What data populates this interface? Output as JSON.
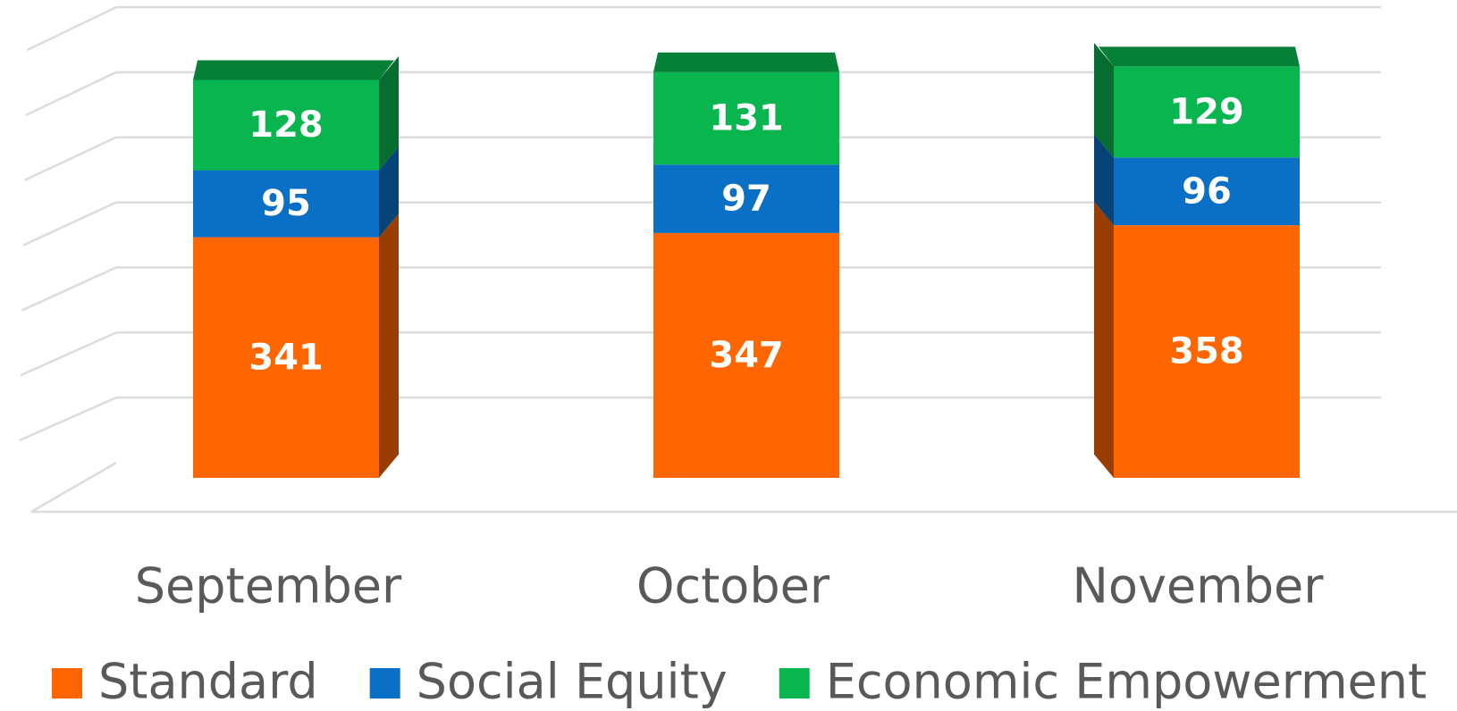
{
  "chart_data": {
    "type": "bar3d_stacked",
    "categories": [
      "September",
      "October",
      "November"
    ],
    "series": [
      {
        "name": "Standard",
        "color": "#ff6600",
        "values": [
          341,
          347,
          358
        ]
      },
      {
        "name": "Social Equity",
        "color": "#0a70c6",
        "values": [
          95,
          97,
          96
        ]
      },
      {
        "name": "Economic Empowerment",
        "color": "#08b54e",
        "values": [
          128,
          131,
          129
        ]
      }
    ],
    "ylim": [
      0,
      700
    ],
    "yticks": [
      0,
      100,
      200,
      300,
      400,
      500,
      600,
      700
    ],
    "grid": true,
    "legend": "bottom"
  }
}
